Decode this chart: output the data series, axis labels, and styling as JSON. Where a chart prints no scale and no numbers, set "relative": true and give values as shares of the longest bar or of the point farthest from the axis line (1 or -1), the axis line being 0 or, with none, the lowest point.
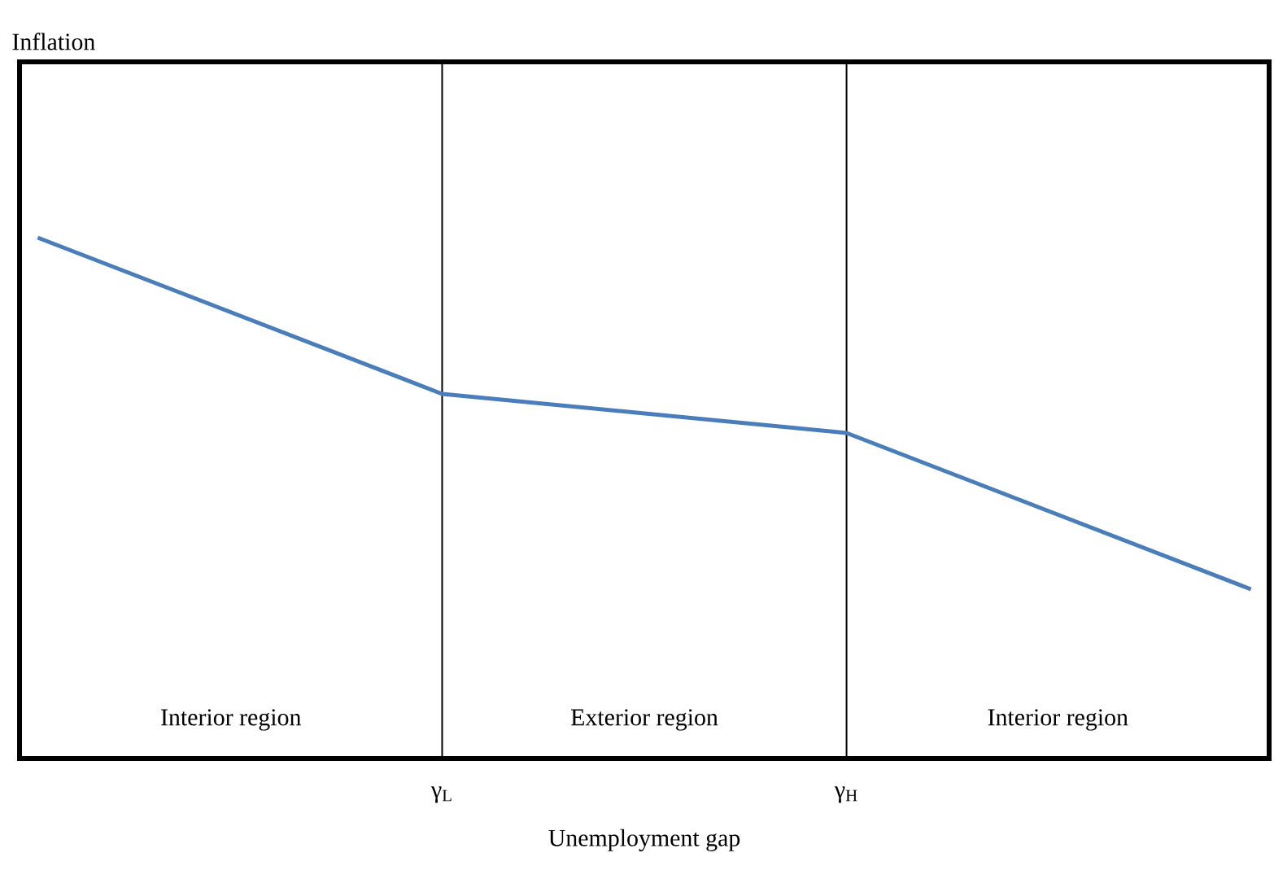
{
  "chart_data": {
    "type": "line",
    "relative": true,
    "xlabel": "Unemployment gap",
    "categories": [
      null,
      "γ$_{L}$",
      "γ$_{H}$",
      null
    ],
    "series": [
      {
        "color": "#4a7ebb",
        "values": [
          1,
          0.7,
          0.625,
          0.325
        ]
      }
    ],
    "ref_lines": [
      {
        "axis": "x",
        "value": "γ$_{L}$"
      },
      {
        "axis": "x",
        "value": "γ$_{H}$"
      }
    ],
    "annotations": [
      "Inflation",
      "Interior region",
      "Exterior region",
      "Interior region"
    ],
    "line_style": "solid"
  }
}
